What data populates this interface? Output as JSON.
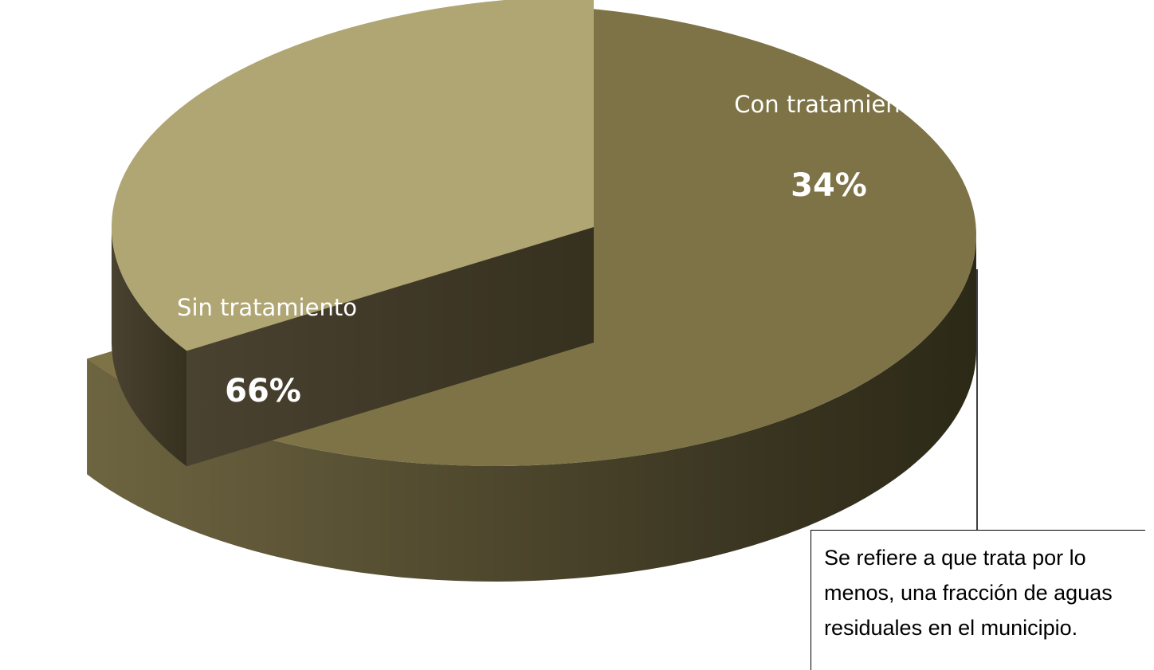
{
  "chart_data": {
    "type": "pie",
    "categories": [
      "Sin tratamiento",
      "Con tratamiento"
    ],
    "values": [
      66,
      34
    ],
    "value_labels": [
      "66%",
      "34%"
    ],
    "colors": [
      "#7d7346",
      "#b0a674"
    ],
    "annotation": "Se refiere a que trata por lo menos, una fracción de aguas residuales en el municipio."
  }
}
